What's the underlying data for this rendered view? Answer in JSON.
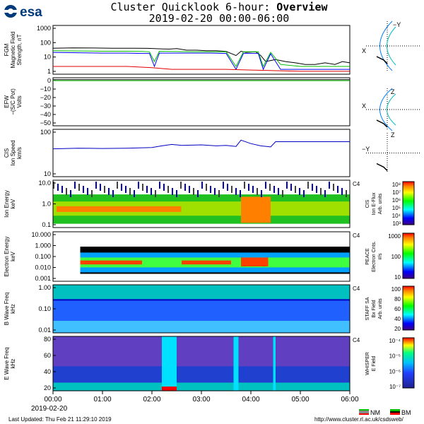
{
  "header": {
    "org": "esa",
    "title_prefix": "Cluster Quicklook 6-hour: ",
    "title_bold": "Overview",
    "subtitle": "2019-02-20 00:00-06:00"
  },
  "chart_data": [
    {
      "type": "line",
      "panel": "fgm",
      "ylabel": "FGM\nMagnetic Field\nStrength, nT",
      "yscale": "log",
      "ylim": [
        1,
        1000
      ],
      "ticks": [
        "1000",
        "100",
        "10",
        "1"
      ],
      "series": [
        {
          "color": "#000000",
          "values": [
            [
              0,
              40
            ],
            [
              0.4,
              42
            ],
            [
              0.8,
              41
            ],
            [
              1.2,
              40
            ],
            [
              1.6,
              40
            ],
            [
              1.9,
              39
            ],
            [
              2.05,
              38
            ],
            [
              2.2,
              36
            ],
            [
              2.35,
              35
            ],
            [
              2.5,
              38
            ],
            [
              2.7,
              30
            ],
            [
              2.9,
              30
            ],
            [
              3.1,
              28
            ],
            [
              3.3,
              28
            ],
            [
              3.5,
              25
            ],
            [
              3.7,
              14
            ],
            [
              3.8,
              26
            ],
            [
              3.9,
              22
            ],
            [
              4.1,
              24
            ],
            [
              4.2,
              14
            ],
            [
              4.3,
              6
            ],
            [
              4.5,
              8
            ],
            [
              4.7,
              6
            ],
            [
              4.9,
              5
            ],
            [
              5.1,
              4
            ],
            [
              5.3,
              4
            ],
            [
              5.5,
              5
            ],
            [
              5.7,
              4
            ],
            [
              5.85,
              6
            ],
            [
              6,
              5
            ]
          ]
        },
        {
          "color": "#00c000",
          "values": [
            [
              0,
              28
            ],
            [
              0.5,
              27
            ],
            [
              1.0,
              26
            ],
            [
              1.5,
              26
            ],
            [
              1.8,
              25
            ],
            [
              1.95,
              24
            ],
            [
              2.05,
              6
            ],
            [
              2.15,
              26
            ],
            [
              2.4,
              25
            ],
            [
              2.8,
              24
            ],
            [
              3.2,
              24
            ],
            [
              3.5,
              24
            ],
            [
              3.7,
              3
            ],
            [
              3.85,
              24
            ],
            [
              4.15,
              24
            ],
            [
              4.25,
              3
            ],
            [
              4.4,
              22
            ],
            [
              4.6,
              4
            ],
            [
              5,
              3
            ],
            [
              6,
              3
            ]
          ]
        },
        {
          "color": "#0000ff",
          "values": [
            [
              0,
              22
            ],
            [
              0.5,
              21
            ],
            [
              1.0,
              20
            ],
            [
              1.5,
              20
            ],
            [
              1.8,
              19
            ],
            [
              1.95,
              19
            ],
            [
              2.05,
              3
            ],
            [
              2.15,
              20
            ],
            [
              2.4,
              20
            ],
            [
              2.8,
              20
            ],
            [
              3.2,
              20
            ],
            [
              3.5,
              19
            ],
            [
              3.7,
              2
            ],
            [
              3.85,
              19
            ],
            [
              4.15,
              19
            ],
            [
              4.25,
              2
            ],
            [
              4.4,
              18
            ],
            [
              4.6,
              2
            ],
            [
              5,
              2
            ],
            [
              6,
              2
            ]
          ]
        },
        {
          "color": "#e00000",
          "values": [
            [
              0,
              3
            ],
            [
              0.5,
              3
            ],
            [
              1.0,
              3
            ],
            [
              1.5,
              3
            ],
            [
              2.0,
              2.5
            ],
            [
              2.4,
              2
            ],
            [
              3,
              2
            ],
            [
              3.5,
              2
            ],
            [
              4,
              1.8
            ],
            [
              5,
              1.5
            ],
            [
              6,
              1.5
            ]
          ]
        }
      ]
    },
    {
      "type": "line",
      "panel": "efw",
      "ylabel": "EFW\n−(S/C Pot)\nVolts",
      "ylim": [
        -50,
        0
      ],
      "ticks": [
        "0",
        "−10",
        "−20",
        "−30",
        "−40",
        "−50"
      ],
      "series": [
        {
          "color": "#000000",
          "values": [
            [
              0,
              -2
            ],
            [
              6,
              -2
            ]
          ]
        },
        {
          "color": "#00c000",
          "values": [
            [
              0,
              -3
            ],
            [
              6,
              -3
            ]
          ]
        }
      ]
    },
    {
      "type": "line",
      "panel": "cis",
      "ylabel": "CIS\nIon Speed\nkm/s",
      "yscale": "log",
      "ylim": [
        10,
        1000
      ],
      "ticks": [
        "100",
        "10"
      ],
      "series": [
        {
          "color": "#0000c0",
          "values": [
            [
              0,
              150
            ],
            [
              0.5,
              160
            ],
            [
              1.0,
              155
            ],
            [
              1.5,
              160
            ],
            [
              2.0,
              170
            ],
            [
              2.2,
              200
            ],
            [
              2.4,
              230
            ],
            [
              2.6,
              210
            ],
            [
              3.0,
              220
            ],
            [
              3.3,
              200
            ],
            [
              3.5,
              210
            ],
            [
              3.7,
              190
            ],
            [
              3.8,
              350
            ],
            [
              4.0,
              250
            ],
            [
              4.2,
              200
            ],
            [
              4.4,
              180
            ],
            [
              4.5,
              300
            ],
            [
              5,
              300
            ],
            [
              6,
              300
            ]
          ]
        }
      ]
    },
    {
      "type": "heatmap",
      "panel": "cis-spec",
      "ylabel": "Ion Energy\nkeV",
      "ticks": [
        "10.0",
        "1.0",
        "0.1"
      ],
      "sc": "C4",
      "cbar_label": "CIS\nIon E-Flux\nArb. units",
      "cbar_ticks": [
        "10⁸",
        "10⁷",
        "10⁶",
        "10⁵",
        "10⁴",
        "10³"
      ]
    },
    {
      "type": "heatmap",
      "panel": "peace",
      "ylabel": "Electron Energy\nkeV",
      "ticks": [
        "10.000",
        "1.000",
        "0.100",
        "0.010",
        "0.001"
      ],
      "sc": "C4",
      "cbar_label": "PEACE\nElectron Cnts.\n#/s",
      "cbar_ticks": [
        "1000",
        "100",
        "10"
      ]
    },
    {
      "type": "heatmap",
      "panel": "staff",
      "ylabel": "B Wave Freq\nkHz",
      "ticks": [
        "1.00",
        "0.10",
        "0.01"
      ],
      "sc": "C4",
      "cbar_label": "STAFF SA\nBx Field\nArb. units",
      "cbar_ticks": [
        "100",
        "80",
        "60",
        "40",
        "20"
      ]
    },
    {
      "type": "heatmap",
      "panel": "whisper",
      "ylabel": "E Wave Freq\nkHz",
      "ticks": [
        "80",
        "60",
        "40",
        "20"
      ],
      "sc": "C4",
      "cbar_label": "WHISPER\nE Field",
      "cbar_ticks": [
        "10⁻⁴",
        "10⁻⁵",
        "10⁻⁶",
        "10⁻⁷"
      ]
    }
  ],
  "xaxis": {
    "ticks": [
      "00:00",
      "01:00",
      "02:00",
      "03:00",
      "04:00",
      "05:00",
      "06:00"
    ],
    "date": "2019-02-20"
  },
  "orbit": {
    "labels": [
      "−Y",
      "X",
      "Z",
      "X",
      "Z",
      "−Y"
    ]
  },
  "legend": {
    "nm": "NM",
    "bm": "BM"
  },
  "footer": {
    "left": "Last Updated:  Thu Feb 21 11:29:10 2019",
    "right": "http://www.cluster.rl.ac.uk/csdsweb/"
  }
}
